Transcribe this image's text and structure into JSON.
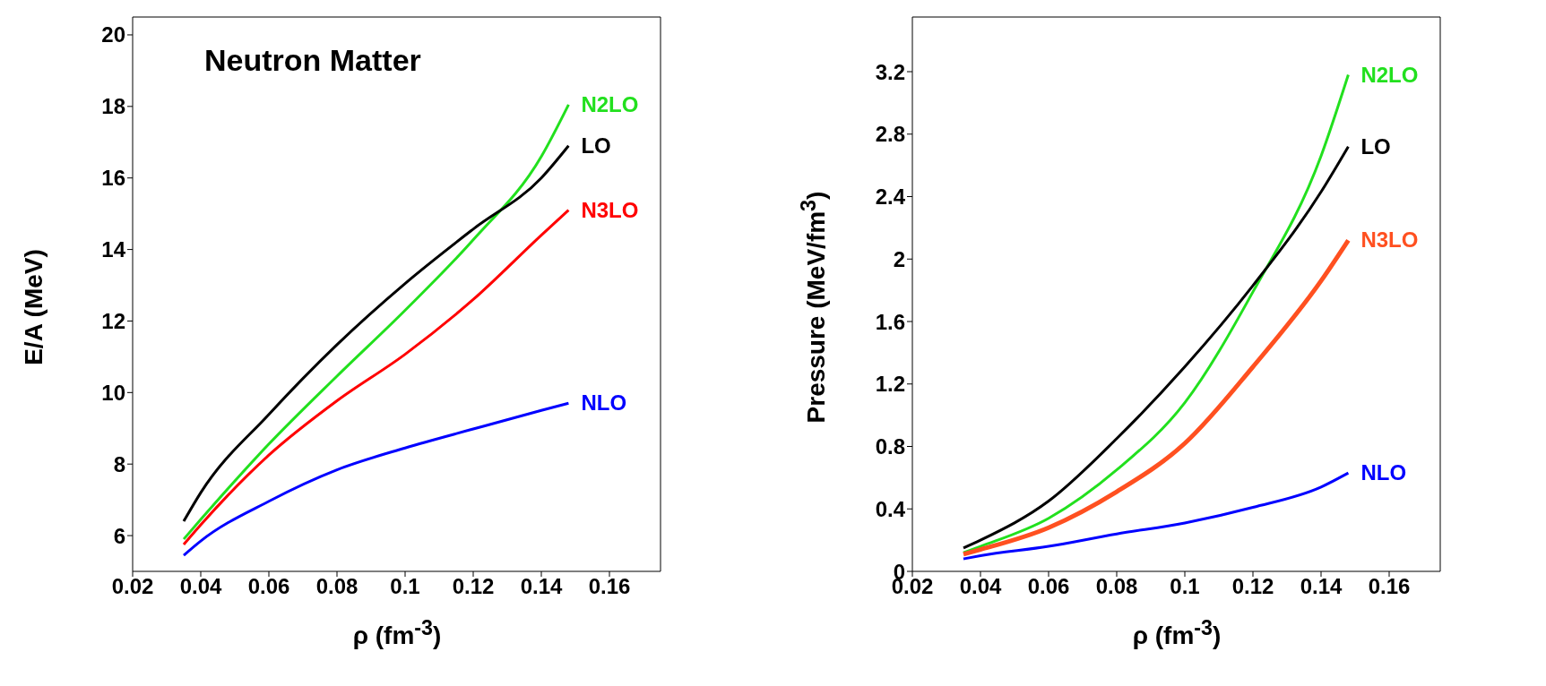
{
  "chart_data": [
    {
      "type": "line",
      "title": "Neutron Matter",
      "xlabel": "ρ (fm$^{-3}$)",
      "ylabel": "E/A (MeV)",
      "x": [
        0.035,
        0.04,
        0.06,
        0.08,
        0.1,
        0.12,
        0.14,
        0.148
      ],
      "series": [
        {
          "name": "N2LO",
          "color": "#22e01e",
          "values": [
            5.9,
            6.45,
            8.56,
            10.46,
            12.3,
            14.27,
            16.6,
            18.05
          ]
        },
        {
          "name": "LO",
          "color": "#000000",
          "values": [
            6.4,
            7.2,
            9.39,
            11.34,
            13.05,
            14.57,
            16.0,
            16.9
          ]
        },
        {
          "name": "N3LO",
          "color": "#ff0000",
          "values": [
            5.75,
            6.3,
            8.25,
            9.77,
            11.07,
            12.6,
            14.4,
            15.1
          ]
        },
        {
          "name": "NLO",
          "color": "#0000ff",
          "values": [
            5.45,
            5.85,
            6.96,
            7.84,
            8.45,
            8.98,
            9.5,
            9.7
          ]
        }
      ],
      "xlim": [
        0.02,
        0.175
      ],
      "xticks": [
        0.02,
        0.04,
        0.06,
        0.08,
        0.1,
        0.12,
        0.14,
        0.16
      ],
      "ylim": [
        5,
        20.5
      ],
      "yticks": [
        6,
        8,
        10,
        12,
        14,
        16,
        18,
        20
      ],
      "line_style": "solid",
      "marker": "none"
    },
    {
      "type": "line",
      "xlabel": "ρ (fm$^{-3}$)",
      "ylabel": "Pressure (MeV/fm$^{3}$)",
      "x": [
        0.035,
        0.04,
        0.06,
        0.08,
        0.1,
        0.12,
        0.14,
        0.148
      ],
      "series": [
        {
          "name": "N2LO",
          "color": "#22e01e",
          "values": [
            0.12,
            0.16,
            0.34,
            0.65,
            1.08,
            1.79,
            2.66,
            3.18
          ]
        },
        {
          "name": "LO",
          "color": "#000000",
          "values": [
            0.15,
            0.2,
            0.45,
            0.85,
            1.31,
            1.83,
            2.43,
            2.72
          ]
        },
        {
          "name": "N3LO",
          "color": "#ff5020",
          "values": [
            0.11,
            0.14,
            0.28,
            0.51,
            0.82,
            1.31,
            1.86,
            2.12
          ]
        },
        {
          "name": "NLO",
          "color": "#0000ff",
          "values": [
            0.08,
            0.1,
            0.16,
            0.24,
            0.31,
            0.41,
            0.54,
            0.63
          ]
        }
      ],
      "xlim": [
        0.02,
        0.175
      ],
      "xticks": [
        0.02,
        0.04,
        0.06,
        0.08,
        0.1,
        0.12,
        0.14,
        0.16
      ],
      "ylim": [
        0,
        3.55
      ],
      "yticks": [
        0,
        0.4,
        0.8,
        1.2,
        1.6,
        2,
        2.4,
        2.8,
        3.2
      ],
      "line_style": "solid",
      "marker": "none"
    }
  ]
}
